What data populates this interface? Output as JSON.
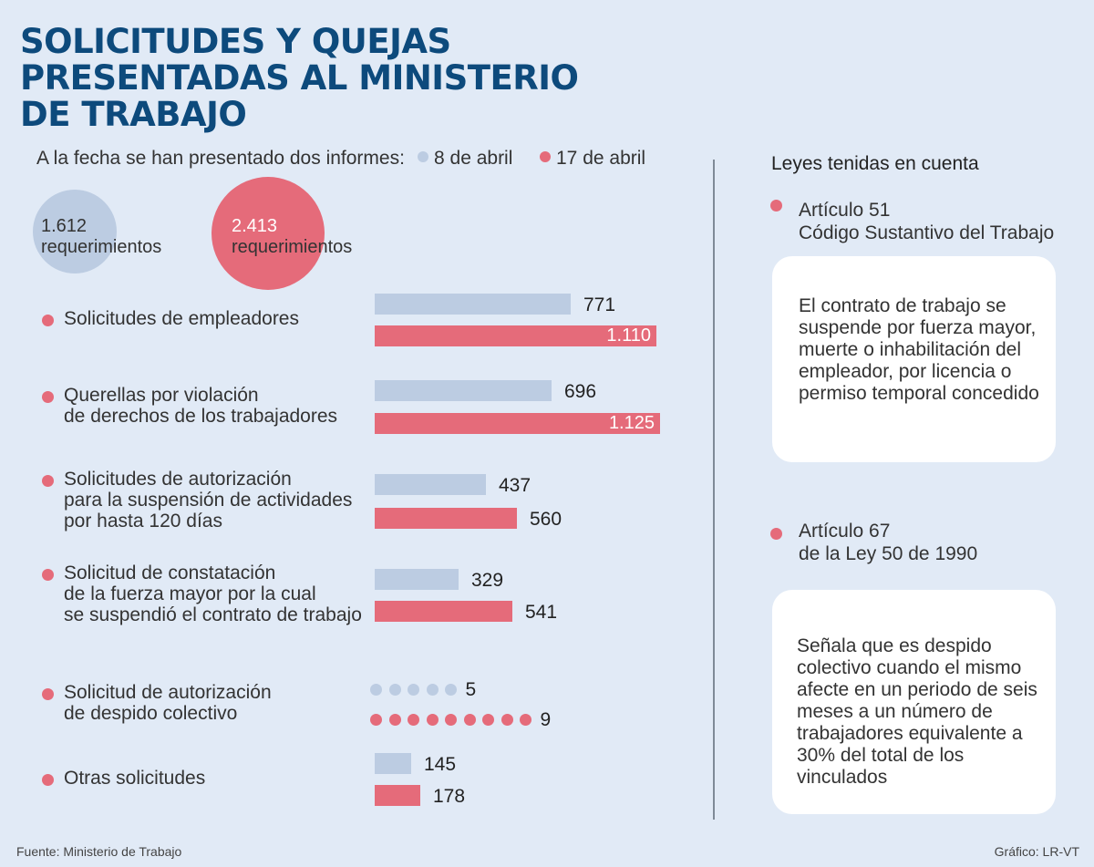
{
  "title_lines": [
    "SOLICITUDES Y QUEJAS",
    "PRESENTADAS AL MINISTERIO",
    "DE TRABAJO"
  ],
  "intro": "A la fecha se han presentado dos informes:",
  "legend": [
    {
      "label": "8 de abril",
      "color": "#bccce2"
    },
    {
      "label": "17 de abril",
      "color": "#e56b7a"
    }
  ],
  "totals": [
    {
      "value": "1.612",
      "unit": "requerimientos",
      "color": "#bccce2"
    },
    {
      "value": "2.413",
      "unit": "requerimientos",
      "color": "#e56b7a"
    }
  ],
  "chart_data": {
    "type": "bar",
    "orientation": "horizontal",
    "categories": [
      [
        "Solicitudes de empleadores"
      ],
      [
        "Querellas por violación",
        "de derechos de los trabajadores"
      ],
      [
        "Solicitudes de autorización",
        "para la suspensión de actividades",
        "por hasta 120 días"
      ],
      [
        "Solicitud de constatación",
        "de la fuerza mayor por la cual",
        "se suspendió el contrato de trabajo"
      ],
      [
        "Solicitud de autorización",
        "de despido colectivo"
      ],
      [
        "Otras solicitudes"
      ]
    ],
    "series": [
      {
        "name": "8 de abril",
        "color": "#bccce2",
        "values": [
          771,
          696,
          437,
          329,
          5,
          145
        ],
        "labels": [
          "771",
          "696",
          "437",
          "329",
          "5",
          "145"
        ]
      },
      {
        "name": "17 de abril",
        "color": "#e56b7a",
        "values": [
          1110,
          1125,
          560,
          541,
          9,
          178
        ],
        "labels": [
          "1.110",
          "1.125",
          "560",
          "541",
          "9",
          "178"
        ]
      }
    ],
    "dot_category_index": 4
  },
  "laws_title": "Leyes tenidas en cuenta",
  "laws": [
    {
      "heading": [
        "Artículo 51",
        "Código Sustantivo del Trabajo"
      ],
      "text": [
        "El contrato de trabajo se",
        "suspende por fuerza mayor,",
        "muerte o inhabilitación del",
        "empleador, por licencia o",
        "permiso temporal concedido"
      ]
    },
    {
      "heading": [
        "Artículo 67",
        "de la Ley 50 de 1990"
      ],
      "text": [
        "Señala que es despido",
        "colectivo cuando el mismo",
        "afecte en un periodo de seis",
        "meses a un número de",
        "trabajadores equivalente a",
        "30% del total de los",
        "vinculados"
      ]
    }
  ],
  "source": "Fuente: Ministerio de Trabajo",
  "credit": "Gráfico: LR-VT"
}
